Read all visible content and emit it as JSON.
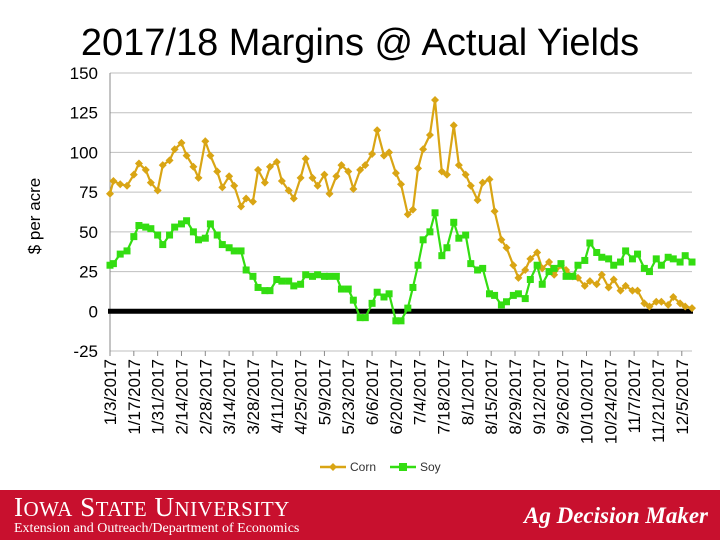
{
  "slide": {
    "title": "2017/18 Margins @ Actual Yields"
  },
  "footer": {
    "university": "Iowa State University",
    "department": "Extension and Outreach/Department of Economics",
    "brand": "Ag Decision Maker",
    "color": "#c8102e"
  },
  "chart_data": {
    "type": "line",
    "title": "2017/18 Margins @ Actual Yields",
    "ylabel": "$ per acre",
    "xlabel": "",
    "ylim": [
      -25,
      150
    ],
    "yticks": [
      -25,
      0,
      25,
      50,
      75,
      100,
      125,
      150
    ],
    "xlim": [
      "2017-01-03",
      "2017-12-11"
    ],
    "xtick_labels": [
      "1/3/2017",
      "1/17/2017",
      "1/31/2017",
      "2/14/2017",
      "2/28/2017",
      "3/14/2017",
      "3/28/2017",
      "4/11/2017",
      "4/25/2017",
      "5/9/2017",
      "5/23/2017",
      "6/6/2017",
      "6/20/2017",
      "7/4/2017",
      "7/18/2017",
      "8/1/2017",
      "8/15/2017",
      "8/29/2017",
      "9/12/2017",
      "9/26/2017",
      "10/10/2017",
      "10/24/2017",
      "11/7/2017",
      "11/21/2017",
      "12/5/2017"
    ],
    "grid": true,
    "legend_position": "bottom",
    "zero_line": true,
    "series": [
      {
        "name": "Corn",
        "color": "#d9a514",
        "marker": "diamond",
        "points": [
          [
            "2017-01-03",
            74
          ],
          [
            "2017-01-05",
            82
          ],
          [
            "2017-01-09",
            80
          ],
          [
            "2017-01-13",
            79
          ],
          [
            "2017-01-17",
            86
          ],
          [
            "2017-01-20",
            93
          ],
          [
            "2017-01-24",
            89
          ],
          [
            "2017-01-27",
            81
          ],
          [
            "2017-01-31",
            76
          ],
          [
            "2017-02-03",
            92
          ],
          [
            "2017-02-07",
            95
          ],
          [
            "2017-02-10",
            102
          ],
          [
            "2017-02-14",
            106
          ],
          [
            "2017-02-17",
            98
          ],
          [
            "2017-02-21",
            91
          ],
          [
            "2017-02-24",
            84
          ],
          [
            "2017-02-28",
            107
          ],
          [
            "2017-03-03",
            98
          ],
          [
            "2017-03-07",
            88
          ],
          [
            "2017-03-10",
            78
          ],
          [
            "2017-03-14",
            85
          ],
          [
            "2017-03-17",
            79
          ],
          [
            "2017-03-21",
            66
          ],
          [
            "2017-03-24",
            71
          ],
          [
            "2017-03-28",
            69
          ],
          [
            "2017-03-31",
            89
          ],
          [
            "2017-04-04",
            81
          ],
          [
            "2017-04-07",
            91
          ],
          [
            "2017-04-11",
            94
          ],
          [
            "2017-04-14",
            82
          ],
          [
            "2017-04-18",
            76
          ],
          [
            "2017-04-21",
            71
          ],
          [
            "2017-04-25",
            84
          ],
          [
            "2017-04-28",
            96
          ],
          [
            "2017-05-02",
            84
          ],
          [
            "2017-05-05",
            79
          ],
          [
            "2017-05-09",
            86
          ],
          [
            "2017-05-12",
            74
          ],
          [
            "2017-05-16",
            85
          ],
          [
            "2017-05-19",
            92
          ],
          [
            "2017-05-23",
            88
          ],
          [
            "2017-05-26",
            77
          ],
          [
            "2017-05-30",
            89
          ],
          [
            "2017-06-02",
            92
          ],
          [
            "2017-06-06",
            99
          ],
          [
            "2017-06-09",
            114
          ],
          [
            "2017-06-13",
            98
          ],
          [
            "2017-06-16",
            100
          ],
          [
            "2017-06-20",
            87
          ],
          [
            "2017-06-23",
            80
          ],
          [
            "2017-06-27",
            61
          ],
          [
            "2017-06-30",
            64
          ],
          [
            "2017-07-03",
            90
          ],
          [
            "2017-07-06",
            102
          ],
          [
            "2017-07-10",
            111
          ],
          [
            "2017-07-13",
            133
          ],
          [
            "2017-07-17",
            88
          ],
          [
            "2017-07-20",
            86
          ],
          [
            "2017-07-24",
            117
          ],
          [
            "2017-07-27",
            92
          ],
          [
            "2017-07-31",
            86
          ],
          [
            "2017-08-03",
            79
          ],
          [
            "2017-08-07",
            70
          ],
          [
            "2017-08-10",
            81
          ],
          [
            "2017-08-14",
            83
          ],
          [
            "2017-08-17",
            63
          ],
          [
            "2017-08-21",
            45
          ],
          [
            "2017-08-24",
            40
          ],
          [
            "2017-08-28",
            29
          ],
          [
            "2017-08-31",
            21
          ],
          [
            "2017-09-04",
            26
          ],
          [
            "2017-09-07",
            33
          ],
          [
            "2017-09-11",
            37
          ],
          [
            "2017-09-14",
            27
          ],
          [
            "2017-09-18",
            31
          ],
          [
            "2017-09-21",
            23
          ],
          [
            "2017-09-25",
            29
          ],
          [
            "2017-09-28",
            26
          ],
          [
            "2017-10-02",
            22
          ],
          [
            "2017-10-05",
            21
          ],
          [
            "2017-10-09",
            16
          ],
          [
            "2017-10-12",
            19
          ],
          [
            "2017-10-16",
            17
          ],
          [
            "2017-10-19",
            23
          ],
          [
            "2017-10-23",
            15
          ],
          [
            "2017-10-26",
            20
          ],
          [
            "2017-10-30",
            13
          ],
          [
            "2017-11-02",
            16
          ],
          [
            "2017-11-06",
            13
          ],
          [
            "2017-11-09",
            13
          ],
          [
            "2017-11-13",
            5
          ],
          [
            "2017-11-16",
            3
          ],
          [
            "2017-11-20",
            6
          ],
          [
            "2017-11-23",
            6
          ],
          [
            "2017-11-27",
            4
          ],
          [
            "2017-11-30",
            9
          ],
          [
            "2017-12-04",
            5
          ],
          [
            "2017-12-07",
            3
          ],
          [
            "2017-12-11",
            2
          ]
        ]
      },
      {
        "name": "Soy",
        "color": "#33dd11",
        "marker": "square",
        "points": [
          [
            "2017-01-03",
            29
          ],
          [
            "2017-01-05",
            30
          ],
          [
            "2017-01-09",
            36
          ],
          [
            "2017-01-13",
            38
          ],
          [
            "2017-01-17",
            47
          ],
          [
            "2017-01-20",
            54
          ],
          [
            "2017-01-24",
            53
          ],
          [
            "2017-01-27",
            52
          ],
          [
            "2017-01-31",
            48
          ],
          [
            "2017-02-03",
            42
          ],
          [
            "2017-02-07",
            48
          ],
          [
            "2017-02-10",
            53
          ],
          [
            "2017-02-14",
            55
          ],
          [
            "2017-02-17",
            57
          ],
          [
            "2017-02-21",
            50
          ],
          [
            "2017-02-24",
            45
          ],
          [
            "2017-02-28",
            46
          ],
          [
            "2017-03-03",
            55
          ],
          [
            "2017-03-07",
            48
          ],
          [
            "2017-03-10",
            42
          ],
          [
            "2017-03-14",
            40
          ],
          [
            "2017-03-17",
            38
          ],
          [
            "2017-03-21",
            38
          ],
          [
            "2017-03-24",
            26
          ],
          [
            "2017-03-28",
            22
          ],
          [
            "2017-03-31",
            15
          ],
          [
            "2017-04-04",
            13
          ],
          [
            "2017-04-07",
            13
          ],
          [
            "2017-04-11",
            20
          ],
          [
            "2017-04-14",
            19
          ],
          [
            "2017-04-18",
            19
          ],
          [
            "2017-04-21",
            16
          ],
          [
            "2017-04-25",
            17
          ],
          [
            "2017-04-28",
            23
          ],
          [
            "2017-05-02",
            22
          ],
          [
            "2017-05-05",
            23
          ],
          [
            "2017-05-09",
            22
          ],
          [
            "2017-05-12",
            22
          ],
          [
            "2017-05-16",
            22
          ],
          [
            "2017-05-19",
            14
          ],
          [
            "2017-05-23",
            14
          ],
          [
            "2017-05-26",
            7
          ],
          [
            "2017-05-30",
            -4
          ],
          [
            "2017-06-02",
            -4
          ],
          [
            "2017-06-06",
            5
          ],
          [
            "2017-06-09",
            12
          ],
          [
            "2017-06-13",
            9
          ],
          [
            "2017-06-16",
            11
          ],
          [
            "2017-06-20",
            -6
          ],
          [
            "2017-06-23",
            -6
          ],
          [
            "2017-06-27",
            2
          ],
          [
            "2017-06-30",
            15
          ],
          [
            "2017-07-03",
            29
          ],
          [
            "2017-07-06",
            45
          ],
          [
            "2017-07-10",
            50
          ],
          [
            "2017-07-13",
            62
          ],
          [
            "2017-07-17",
            35
          ],
          [
            "2017-07-20",
            40
          ],
          [
            "2017-07-24",
            56
          ],
          [
            "2017-07-27",
            46
          ],
          [
            "2017-07-31",
            48
          ],
          [
            "2017-08-03",
            30
          ],
          [
            "2017-08-07",
            26
          ],
          [
            "2017-08-10",
            27
          ],
          [
            "2017-08-14",
            11
          ],
          [
            "2017-08-17",
            10
          ],
          [
            "2017-08-21",
            4
          ],
          [
            "2017-08-24",
            6
          ],
          [
            "2017-08-28",
            10
          ],
          [
            "2017-08-31",
            11
          ],
          [
            "2017-09-04",
            8
          ],
          [
            "2017-09-07",
            20
          ],
          [
            "2017-09-11",
            29
          ],
          [
            "2017-09-14",
            17
          ],
          [
            "2017-09-18",
            25
          ],
          [
            "2017-09-21",
            27
          ],
          [
            "2017-09-25",
            30
          ],
          [
            "2017-09-28",
            22
          ],
          [
            "2017-10-02",
            22
          ],
          [
            "2017-10-05",
            29
          ],
          [
            "2017-10-09",
            32
          ],
          [
            "2017-10-12",
            43
          ],
          [
            "2017-10-16",
            37
          ],
          [
            "2017-10-19",
            34
          ],
          [
            "2017-10-23",
            33
          ],
          [
            "2017-10-26",
            29
          ],
          [
            "2017-10-30",
            31
          ],
          [
            "2017-11-02",
            38
          ],
          [
            "2017-11-06",
            33
          ],
          [
            "2017-11-09",
            36
          ],
          [
            "2017-11-13",
            27
          ],
          [
            "2017-11-16",
            25
          ],
          [
            "2017-11-20",
            33
          ],
          [
            "2017-11-23",
            29
          ],
          [
            "2017-11-27",
            34
          ],
          [
            "2017-11-30",
            33
          ],
          [
            "2017-12-04",
            31
          ],
          [
            "2017-12-07",
            35
          ],
          [
            "2017-12-11",
            31
          ]
        ]
      }
    ]
  }
}
